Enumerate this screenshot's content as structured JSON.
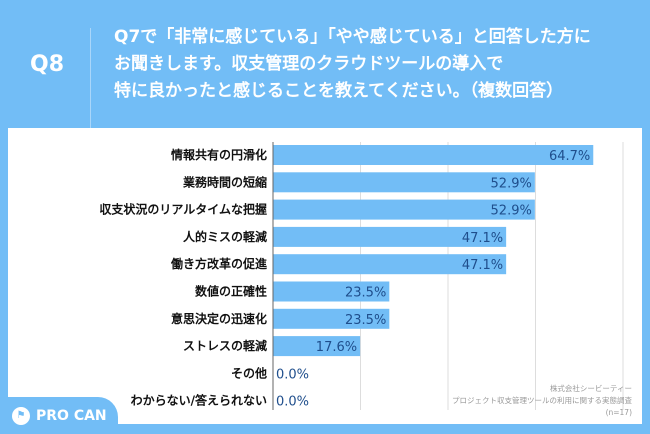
{
  "header": {
    "question_no": "Q8",
    "title_lines": [
      "Q7で「非常に感じている」「やや感じている」と回答した方に",
      "お聞きします。収支管理のクラウドツールの導入で",
      "特に良かったと感じることを教えてください。（複数回答）"
    ]
  },
  "brand": {
    "logo": "PRO CAN"
  },
  "source": {
    "company": "株式会社シービーティー",
    "survey": "プロジェクト収支管理ツールの利用に関する実態調査",
    "n": "(n=17)"
  },
  "colors": {
    "background": "#72bdf6",
    "bar": "#72bdf6",
    "value_text": "#1f4e8c"
  },
  "chart_data": {
    "type": "bar",
    "orientation": "horizontal",
    "unit": "%",
    "categories": [
      "情報共有の円滑化",
      "業務時間の短縮",
      "収支状況のリアルタイムな把握",
      "人的ミスの軽減",
      "働き方改革の促進",
      "数値の正確性",
      "意思決定の迅速化",
      "ストレスの軽減",
      "その他",
      "わからない/答えられない"
    ],
    "values": [
      64.7,
      52.9,
      52.9,
      47.1,
      47.1,
      23.5,
      23.5,
      17.6,
      0.0,
      0.0
    ],
    "labels": [
      "64.7%",
      "52.9%",
      "52.9%",
      "47.1%",
      "47.1%",
      "23.5%",
      "23.5%",
      "17.6%",
      "0.0%",
      "0.0%"
    ],
    "grid": true
  }
}
